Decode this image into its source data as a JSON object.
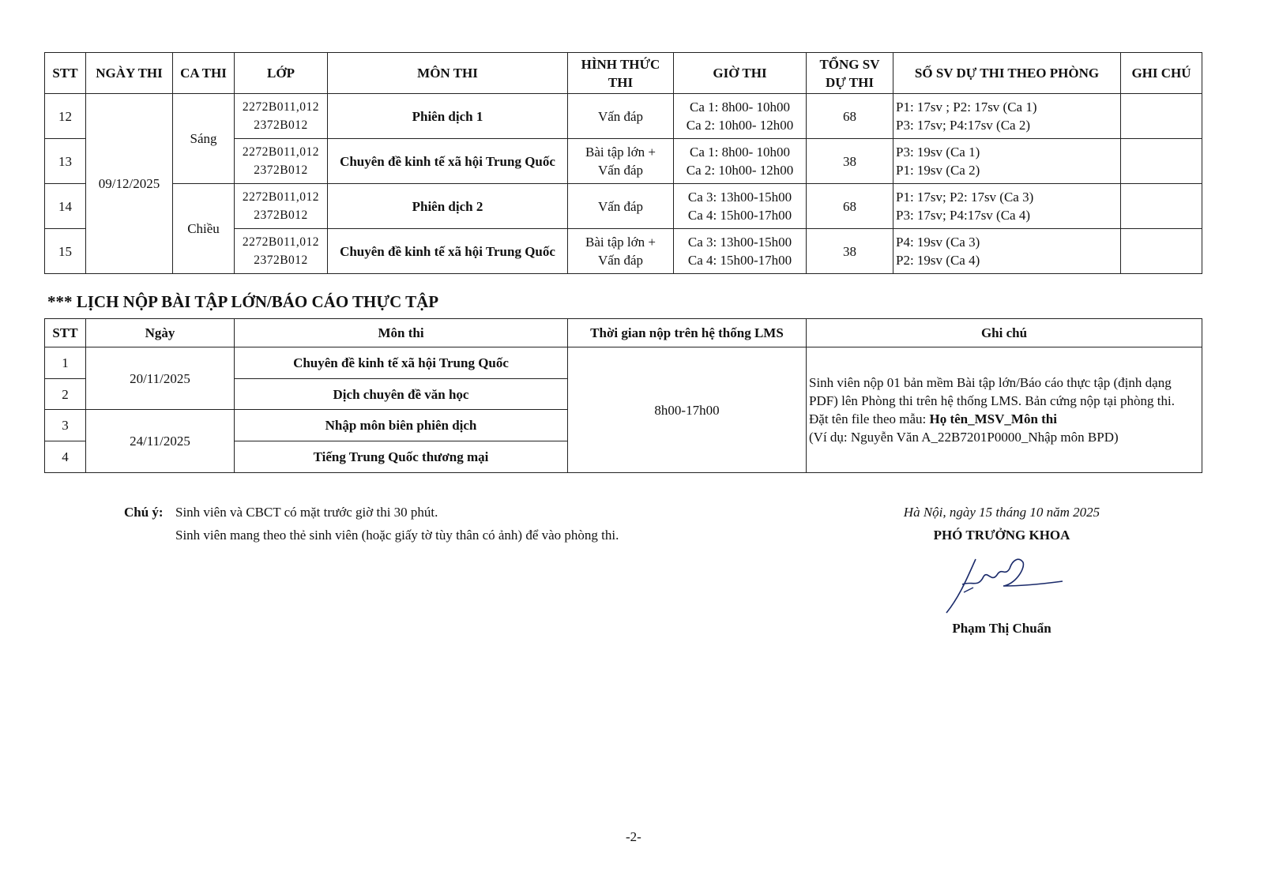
{
  "schedule": {
    "headers": [
      "STT",
      "NGÀY THI",
      "CA THI",
      "LỚP",
      "MÔN THI",
      "HÌNH THỨC THI",
      "GIỜ THI",
      "TỔNG SV DỰ THI",
      "SỐ SV DỰ THI THEO PHÒNG",
      "GHI CHÚ"
    ],
    "date": "09/12/2025",
    "sessions": [
      "Sáng",
      "Chiều"
    ],
    "rows": [
      {
        "stt": "12",
        "class1": "2272B011,012",
        "class2": "2372B012",
        "subject": "Phiên dịch 1",
        "format1": "Vấn đáp",
        "format2": "",
        "time1": "Ca 1: 8h00- 10h00",
        "time2": "Ca 2: 10h00- 12h00",
        "total": "68",
        "room1": "P1: 17sv ; P2: 17sv (Ca 1)",
        "room2": "P3: 17sv; P4:17sv (Ca 2)",
        "note": ""
      },
      {
        "stt": "13",
        "class1": "2272B011,012",
        "class2": "2372B012",
        "subject": "Chuyên đề kinh tế xã hội Trung Quốc",
        "format1": "Bài tập lớn +",
        "format2": "Vấn đáp",
        "time1": "Ca 1: 8h00- 10h00",
        "time2": "Ca 2: 10h00- 12h00",
        "total": "38",
        "room1": "P3: 19sv (Ca 1)",
        "room2": "P1: 19sv (Ca 2)",
        "note": ""
      },
      {
        "stt": "14",
        "class1": "2272B011,012",
        "class2": "2372B012",
        "subject": "Phiên dịch 2",
        "format1": "Vấn đáp",
        "format2": "",
        "time1": "Ca 3: 13h00-15h00",
        "time2": "Ca 4: 15h00-17h00",
        "total": "68",
        "room1": "P1: 17sv; P2: 17sv (Ca 3)",
        "room2": "P3: 17sv; P4:17sv (Ca 4)",
        "note": ""
      },
      {
        "stt": "15",
        "class1": "2272B011,012",
        "class2": "2372B012",
        "subject": "Chuyên đề kinh tế xã hội Trung Quốc",
        "format1": "Bài tập lớn +",
        "format2": "Vấn đáp",
        "time1": "Ca 3: 13h00-15h00",
        "time2": "Ca 4: 15h00-17h00",
        "total": "38",
        "room1": "P4: 19sv (Ca 3)",
        "room2": "P2: 19sv (Ca 4)",
        "note": ""
      }
    ]
  },
  "submission": {
    "title": "*** LỊCH NỘP BÀI TẬP LỚN/BÁO CÁO THỰC TẬP",
    "headers": [
      "STT",
      "Ngày",
      "Môn thi",
      "Thời gian nộp trên hệ thống LMS",
      "Ghi chú"
    ],
    "dates": [
      "20/11/2025",
      "24/11/2025"
    ],
    "time": "8h00-17h00",
    "rows": [
      {
        "stt": "1",
        "subject": "Chuyên đề kinh tế xã hội Trung Quốc"
      },
      {
        "stt": "2",
        "subject": "Dịch chuyên đề văn học"
      },
      {
        "stt": "3",
        "subject": "Nhập môn biên phiên dịch"
      },
      {
        "stt": "4",
        "subject": "Tiếng Trung Quốc thương mại"
      }
    ],
    "note_text": "Sinh viên nộp 01 bản mềm Bài tập lớn/Báo cáo thực tập (định dạng PDF) lên Phòng thi trên hệ thống LMS. Bản cứng nộp tại phòng thi.",
    "note_name_prefix": "Đặt tên file theo mẫu: ",
    "note_name_pattern": "Họ tên_MSV_Môn thi",
    "note_example": "(Ví dụ: Nguyễn Văn A_22B7201P0000_Nhập môn BPD)"
  },
  "notes": {
    "label": "Chú ý:",
    "line1": "Sinh viên và CBCT có mặt trước giờ thi 30 phút.",
    "line2": "Sinh viên mang theo thẻ sinh viên (hoặc giấy tờ tùy thân có ảnh) để vào phòng thi."
  },
  "signature": {
    "place_date": "Hà Nội, ngày 15 tháng 10 năm 2025",
    "title": "PHÓ TRƯỞNG KHOA",
    "name": "Phạm Thị Chuẩn"
  },
  "page_number": "-2-"
}
